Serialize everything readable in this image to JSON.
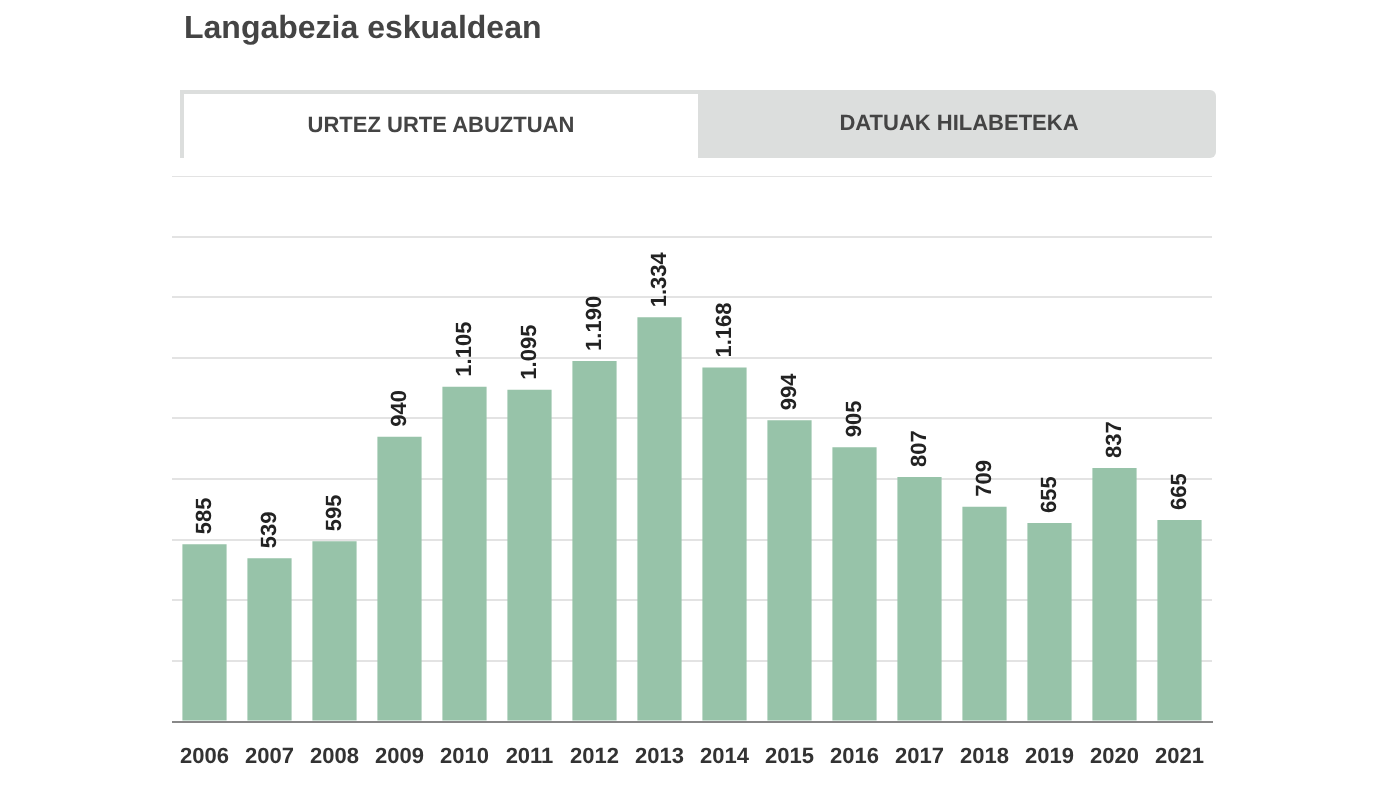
{
  "chart_data": {
    "type": "bar",
    "title": "Langabezia eskualdean",
    "annotations": [
      "URTEZ URTE ABUZTUAN",
      "DATUAK HILABETEKA"
    ],
    "categories": [
      "2006",
      "2007",
      "2008",
      "2009",
      "2010",
      "2011",
      "2012",
      "2013",
      "2014",
      "2015",
      "2016",
      "2017",
      "2018",
      "2019",
      "2020",
      "2021"
    ],
    "values": [
      585,
      539,
      595,
      940,
      1105,
      1095,
      1190,
      1334,
      1168,
      994,
      905,
      807,
      709,
      655,
      837,
      665
    ],
    "value_labels": [
      "585",
      "539",
      "595",
      "940",
      "1.105",
      "1.095",
      "1.190",
      "1.334",
      "1.168",
      "994",
      "905",
      "807",
      "709",
      "655",
      "837",
      "665"
    ],
    "color": "#97c3a9",
    "ylim": [
      0,
      1800
    ],
    "yticks": [
      {
        "value": 0,
        "label": null
      },
      {
        "value": 200,
        "label": null
      },
      {
        "value": 400,
        "label": null
      },
      {
        "value": 600,
        "label": null
      },
      {
        "value": 800,
        "label": null
      },
      {
        "value": 1000,
        "label": null
      },
      {
        "value": 1200,
        "label": null
      },
      {
        "value": 1400,
        "label": null
      },
      {
        "value": 1600,
        "label": null
      },
      {
        "value": 1800,
        "label": null
      }
    ],
    "grid": "y",
    "tick_labels": "x",
    "legend": false
  }
}
